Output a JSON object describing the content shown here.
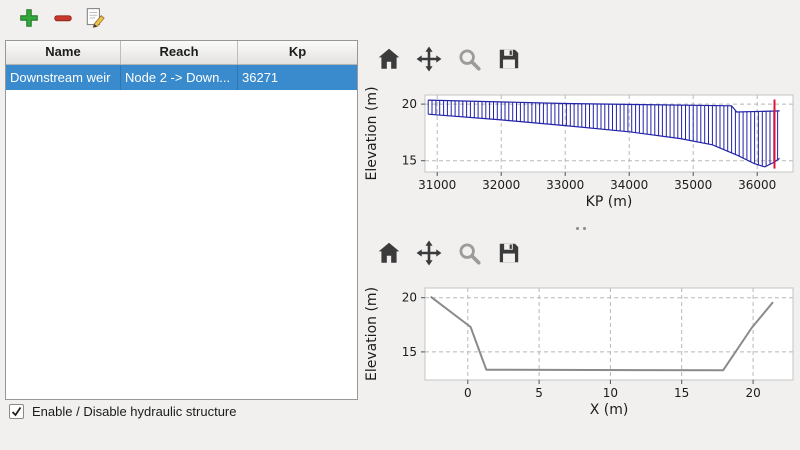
{
  "main_toolbar": {
    "icons": [
      "add-icon",
      "remove-icon",
      "edit-icon"
    ]
  },
  "table": {
    "columns": [
      "Name",
      "Reach",
      "Kp"
    ],
    "rows": [
      {
        "name": "Downstream weir",
        "reach": "Node 2 -> Down...",
        "kp": "36271"
      }
    ],
    "selected_row_index": 0,
    "selection_color": "#3a8bcd"
  },
  "checkbox": {
    "label": "Enable / Disable hydraulic structure",
    "checked": true
  },
  "chart_toolbar": {
    "icons": [
      "home-icon",
      "pan-icon",
      "zoom-icon",
      "save-icon"
    ]
  },
  "chart_data": [
    {
      "type": "area",
      "xlabel": "KP (m)",
      "ylabel": "Elevation (m)",
      "xticks": [
        31000,
        32000,
        33000,
        34000,
        35000,
        36000
      ],
      "yticks": [
        15,
        20
      ],
      "xlim": [
        30810,
        36560
      ],
      "ylim": [
        14.0,
        20.8
      ],
      "grid": true,
      "color": "#2222aa",
      "hatch_step": 60,
      "hatch_range": [
        30860,
        36350
      ],
      "top_profile": [
        [
          30860,
          20.35
        ],
        [
          33000,
          20.05
        ],
        [
          35600,
          19.85
        ],
        [
          35680,
          19.3
        ],
        [
          36350,
          19.4
        ]
      ],
      "bottom_profile": [
        [
          30860,
          19.1
        ],
        [
          32000,
          18.6
        ],
        [
          33000,
          18.1
        ],
        [
          34000,
          17.55
        ],
        [
          34800,
          16.95
        ],
        [
          35300,
          16.4
        ],
        [
          35700,
          15.45
        ],
        [
          35950,
          14.75
        ],
        [
          36120,
          14.45
        ],
        [
          36260,
          14.85
        ],
        [
          36350,
          15.2
        ]
      ],
      "marker_line": {
        "x": 36271,
        "y_range": [
          14.3,
          20.4
        ],
        "color": "#dc143c"
      }
    },
    {
      "type": "line",
      "xlabel": "X (m)",
      "ylabel": "Elevation (m)",
      "xticks": [
        0,
        5,
        10,
        15,
        20
      ],
      "yticks": [
        15,
        20
      ],
      "xlim": [
        -3.0,
        22.8
      ],
      "ylim": [
        12.4,
        20.9
      ],
      "grid": true,
      "color": "#8a8a8a",
      "line_width": 2,
      "points": [
        [
          -2.6,
          20.1
        ],
        [
          0.2,
          17.3
        ],
        [
          1.3,
          13.35
        ],
        [
          17.9,
          13.3
        ],
        [
          19.9,
          17.2
        ],
        [
          21.4,
          19.6
        ]
      ]
    }
  ]
}
